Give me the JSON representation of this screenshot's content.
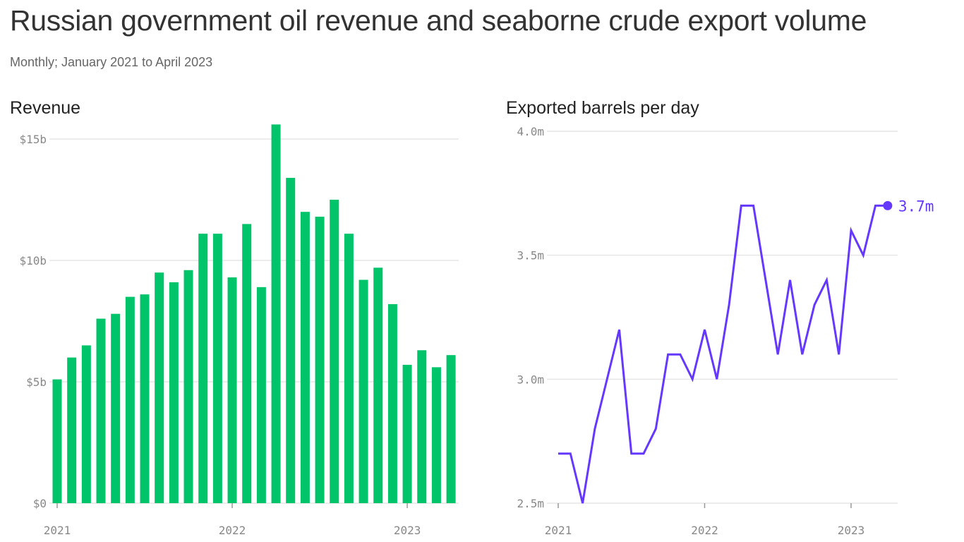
{
  "title": "Russian government oil revenue and seaborne crude export volume",
  "subtitle": "Monthly; January 2021 to April 2023",
  "colors": {
    "revenue": "#00c46a",
    "exports": "#6538ff",
    "grid": "#e6e6e6",
    "tick": "#888888"
  },
  "chart_data": [
    {
      "type": "bar",
      "title": "Revenue",
      "unit": "USD billions",
      "x_tick_labels": [
        "2021",
        "2022",
        "2023"
      ],
      "y_tick_labels": [
        "$0",
        "$5b",
        "$10b",
        "$15b"
      ],
      "y_ticks": [
        0,
        5,
        10,
        15
      ],
      "ylim": [
        0,
        15
      ],
      "grid": true,
      "categories": [
        "2021-01",
        "2021-02",
        "2021-03",
        "2021-04",
        "2021-05",
        "2021-06",
        "2021-07",
        "2021-08",
        "2021-09",
        "2021-10",
        "2021-11",
        "2021-12",
        "2022-01",
        "2022-02",
        "2022-03",
        "2022-04",
        "2022-05",
        "2022-06",
        "2022-07",
        "2022-08",
        "2022-09",
        "2022-10",
        "2022-11",
        "2022-12",
        "2023-01",
        "2023-02",
        "2023-03",
        "2023-04"
      ],
      "values": [
        5.1,
        6.0,
        6.5,
        7.6,
        7.8,
        8.5,
        8.6,
        9.5,
        9.1,
        9.6,
        11.1,
        11.1,
        9.3,
        11.5,
        8.9,
        15.6,
        13.4,
        12.0,
        11.8,
        12.5,
        11.1,
        9.2,
        9.7,
        8.2,
        5.7,
        6.3,
        5.6,
        6.1
      ]
    },
    {
      "type": "line",
      "title": "Exported barrels per day",
      "unit": "million barrels per day",
      "x_tick_labels": [
        "2021",
        "2022",
        "2023"
      ],
      "y_tick_labels": [
        "2.5m",
        "3.0m",
        "3.5m",
        "4.0m"
      ],
      "y_ticks": [
        2.5,
        3.0,
        3.5,
        4.0
      ],
      "ylim": [
        2.5,
        4.0
      ],
      "grid": true,
      "end_label": "3.7m",
      "categories": [
        "2021-01",
        "2021-02",
        "2021-03",
        "2021-04",
        "2021-05",
        "2021-06",
        "2021-07",
        "2021-08",
        "2021-09",
        "2021-10",
        "2021-11",
        "2021-12",
        "2022-01",
        "2022-02",
        "2022-03",
        "2022-04",
        "2022-05",
        "2022-06",
        "2022-07",
        "2022-08",
        "2022-09",
        "2022-10",
        "2022-11",
        "2022-12",
        "2023-01",
        "2023-02",
        "2023-03",
        "2023-04"
      ],
      "values": [
        2.7,
        2.7,
        2.5,
        2.8,
        3.0,
        3.2,
        2.7,
        2.7,
        2.8,
        3.1,
        3.1,
        3.0,
        3.2,
        3.0,
        3.3,
        3.7,
        3.7,
        3.4,
        3.1,
        3.4,
        3.1,
        3.3,
        3.4,
        3.1,
        3.6,
        3.5,
        3.7,
        3.7
      ]
    }
  ]
}
